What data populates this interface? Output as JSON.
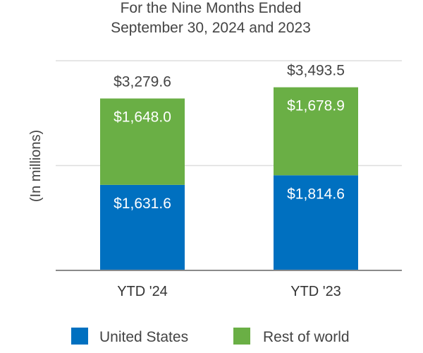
{
  "chart_data": {
    "type": "bar",
    "stacked": true,
    "title_lines": [
      "For the Nine Months Ended",
      "September 30, 2024 and 2023"
    ],
    "ylabel": "(In millions)",
    "categories": [
      "YTD '24",
      "YTD '23"
    ],
    "series": [
      {
        "name": "United States",
        "color": "#0070C0",
        "values": [
          1631.6,
          1814.6
        ],
        "labels": [
          "$1,631.6",
          "$1,814.6"
        ]
      },
      {
        "name": "Rest of world",
        "color": "#6AAF45",
        "values": [
          1648.0,
          1678.9
        ],
        "labels": [
          "$1,648.0",
          "$1,678.9"
        ]
      }
    ],
    "totals": [
      3279.6,
      3493.5
    ],
    "total_labels": [
      "$3,279.6",
      "$3,493.5"
    ],
    "ylim": [
      0,
      4000
    ],
    "gridlines": [
      2000,
      4000
    ],
    "legend_position": "bottom"
  }
}
